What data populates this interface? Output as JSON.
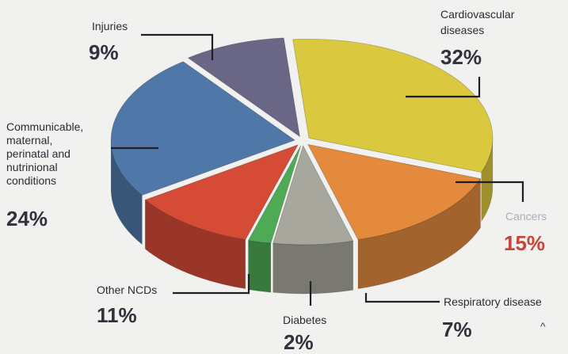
{
  "chart_data": {
    "type": "pie",
    "categories": [
      "Cardiovascular diseases",
      "Cancers",
      "Respiratory disease",
      "Diabetes",
      "Other NCDs",
      "Communicable, maternal, perinatal and nutrinional conditions",
      "Injuries"
    ],
    "values": [
      32,
      15,
      7,
      2,
      11,
      24,
      9
    ],
    "value_labels": [
      "32%",
      "15%",
      "7%",
      "2%",
      "11%",
      "24%",
      "9%"
    ],
    "unit": "%",
    "title": "",
    "style": "3d-exploded",
    "colors": [
      "#dac83e",
      "#e38a3d",
      "#a8a79d",
      "#4eaa55",
      "#d64b36",
      "#4f78a8",
      "#6a6686"
    ]
  },
  "labels": {
    "cardiovascular": {
      "name_line1": "Cardiovascular",
      "name_line2": "diseases",
      "pct": "32%"
    },
    "cancers": {
      "name": "Cancers",
      "pct": "15%"
    },
    "respiratory": {
      "name": "Respiratory disease",
      "pct": "7%"
    },
    "diabetes": {
      "name": "Diabetes",
      "pct": "2%"
    },
    "other_ncds": {
      "name": "Other NCDs",
      "pct": "11%"
    },
    "communicable": {
      "line1": "Communicable,",
      "line2": "maternal,",
      "line3": "perinatal and",
      "line4": "nutrinional",
      "line5": "conditions",
      "pct": "24%"
    },
    "injuries": {
      "name": "Injuries",
      "pct": "9%"
    }
  },
  "decor": {
    "caret": "^"
  }
}
